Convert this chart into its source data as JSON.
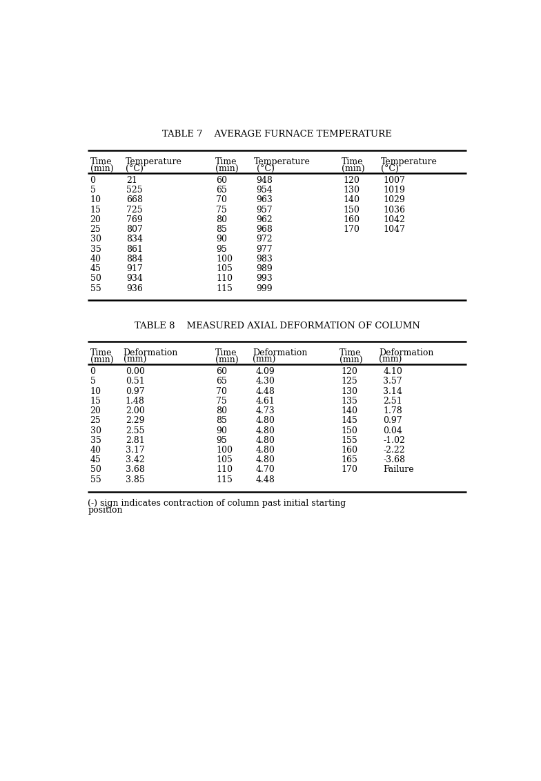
{
  "table7_title": "TABLE 7    AVERAGE FURNACE TEMPERATURE",
  "table8_title": "TABLE 8    MEASURED AXIAL DEFORMATION OF COLUMN",
  "table7_col1_time": [
    0,
    5,
    10,
    15,
    20,
    25,
    30,
    35,
    40,
    45,
    50,
    55
  ],
  "table7_col1_temp": [
    21,
    525,
    668,
    725,
    769,
    807,
    834,
    861,
    884,
    917,
    934,
    936
  ],
  "table7_col2_time": [
    60,
    65,
    70,
    75,
    80,
    85,
    90,
    95,
    100,
    105,
    110,
    115
  ],
  "table7_col2_temp": [
    948,
    954,
    963,
    957,
    962,
    968,
    972,
    977,
    983,
    989,
    993,
    999
  ],
  "table7_col3_time": [
    120,
    130,
    140,
    150,
    160,
    170
  ],
  "table7_col3_temp": [
    1007,
    1019,
    1029,
    1036,
    1042,
    1047
  ],
  "table8_col1_time": [
    0,
    5,
    10,
    15,
    20,
    25,
    30,
    35,
    40,
    45,
    50,
    55
  ],
  "table8_col1_def": [
    "0.00",
    "0.51",
    "0.97",
    "1.48",
    "2.00",
    "2.29",
    "2.55",
    "2.81",
    "3.17",
    "3.42",
    "3.68",
    "3.85"
  ],
  "table8_col2_time": [
    60,
    65,
    70,
    75,
    80,
    85,
    90,
    95,
    100,
    105,
    110,
    115
  ],
  "table8_col2_def": [
    "4.09",
    "4.30",
    "4.48",
    "4.61",
    "4.73",
    "4.80",
    "4.80",
    "4.80",
    "4.80",
    "4.80",
    "4.70",
    "4.48"
  ],
  "table8_col3_time": [
    120,
    125,
    130,
    135,
    140,
    145,
    150,
    155,
    160,
    165,
    170
  ],
  "table8_col3_def": [
    "4.10",
    "3.57",
    "3.14",
    "2.51",
    "1.78",
    "0.97",
    "0.04",
    "-1.02",
    "-2.22",
    "-3.68",
    "Failure"
  ],
  "footnote_line1": "(-) sign indicates contraction of column past initial starting",
  "footnote_line2": "position",
  "t7_hdr1a": "Time",
  "t7_hdr1b": "(min)",
  "t7_hdr2a": "Temperature",
  "t7_hdr2b": "(°C)",
  "t7_hdr3a": "Time",
  "t7_hdr3b": "(min)",
  "t7_hdr4a": "Temperature",
  "t7_hdr4b": " (°C)",
  "t7_hdr5a": "Time",
  "t7_hdr5b": "(min)",
  "t7_hdr6a": "Temperature",
  "t7_hdr6b": "(°C)",
  "t8_hdr1a": "Time",
  "t8_hdr1b": "(min)",
  "t8_hdr2a": "Deformation",
  "t8_hdr2b": "(mm)",
  "t8_hdr3a": "Time",
  "t8_hdr3b": "(min)",
  "t8_hdr4a": "Deformation",
  "t8_hdr4b": "(mm)",
  "t8_hdr5a": "Time",
  "t8_hdr5b": "(min)",
  "t8_hdr6a": "Deformation",
  "t8_hdr6b": "(mm)",
  "bg_color": "#ffffff",
  "text_color": "#000000",
  "line_color": "#000000",
  "title_fontsize": 9.5,
  "header_fontsize": 9,
  "data_fontsize": 9,
  "footnote_fontsize": 9,
  "thick_lw": 1.8,
  "thin_lw": 0.8
}
